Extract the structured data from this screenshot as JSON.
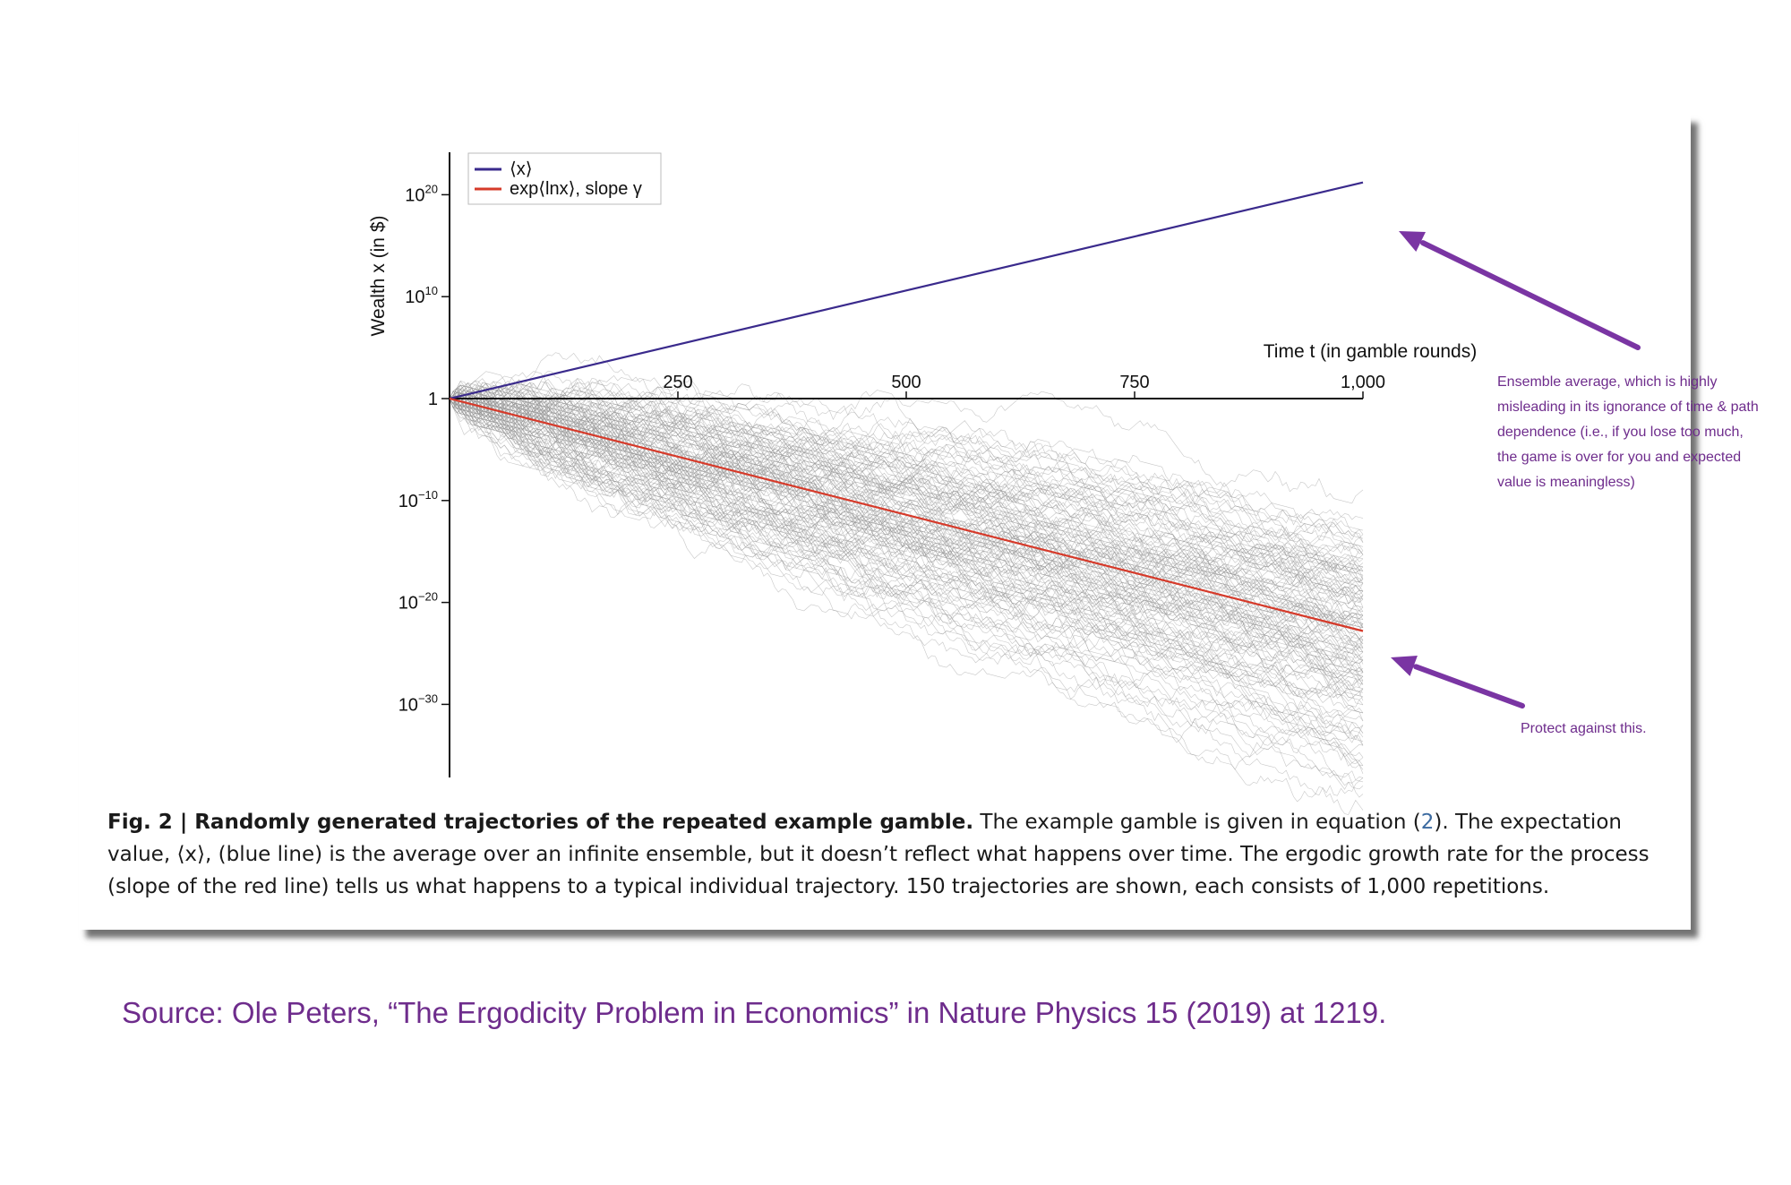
{
  "chart_data": {
    "type": "line",
    "ylabel": "Wealth x (in $)",
    "xlabel": "Time t (in gamble rounds)",
    "y_scale": "log",
    "xlim": [
      0,
      1000
    ],
    "ylim_log10": [
      -37,
      25
    ],
    "x_ticks": [
      {
        "value": 250,
        "label": "250"
      },
      {
        "value": 500,
        "label": "500"
      },
      {
        "value": 750,
        "label": "750"
      },
      {
        "value": 1000,
        "label": "1,000"
      }
    ],
    "y_ticks": [
      {
        "log10": 20,
        "base": "10",
        "exp": "20"
      },
      {
        "log10": 10,
        "base": "10",
        "exp": "10"
      },
      {
        "log10": 0,
        "base": "1",
        "exp": ""
      },
      {
        "log10": -10,
        "base": "10",
        "exp": "−10"
      },
      {
        "log10": -20,
        "base": "10",
        "exp": "−20"
      },
      {
        "log10": -30,
        "base": "10",
        "exp": "−30"
      }
    ],
    "series": [
      {
        "name": "⟨x⟩",
        "color": "#3a2a8c",
        "x": [
          0,
          1000
        ],
        "log10_y": [
          0,
          21.2
        ]
      },
      {
        "name": "exp⟨lnx⟩, slope γ",
        "color": "#d63a2a",
        "x": [
          0,
          1000
        ],
        "log10_y": [
          0,
          -22.8
        ]
      }
    ],
    "trajectories": {
      "count": 150,
      "steps": 1000,
      "color": "#9a9a9a"
    },
    "legend_position": "top-left"
  },
  "caption": {
    "lead": "Fig. 2 | Randomly generated trajectories of the repeated example gamble.",
    "part1": " The example gamble is given in equation (",
    "ref": "2",
    "part2": "). The expectation value, ⟨x⟩, (blue line) is the average over an infinite ensemble, but it doesn’t reflect what happens over time. The ergodic growth rate for the process (slope of the red line) tells us what happens to a typical individual trajectory. 150 trajectories are shown, each consists of 1,000 repetitions."
  },
  "annotations": {
    "ensemble": "Ensemble average, which is highly misleading in its ignorance of time & path dependence (i.e., if you lose too much, the game is over for you and expected value is meaningless)",
    "protect": "Protect against this.",
    "arrow_color": "#7a35a3"
  },
  "source": "Source: Ole Peters, “The Ergodicity Problem in Economics” in Nature Physics 15 (2019) at 1219."
}
